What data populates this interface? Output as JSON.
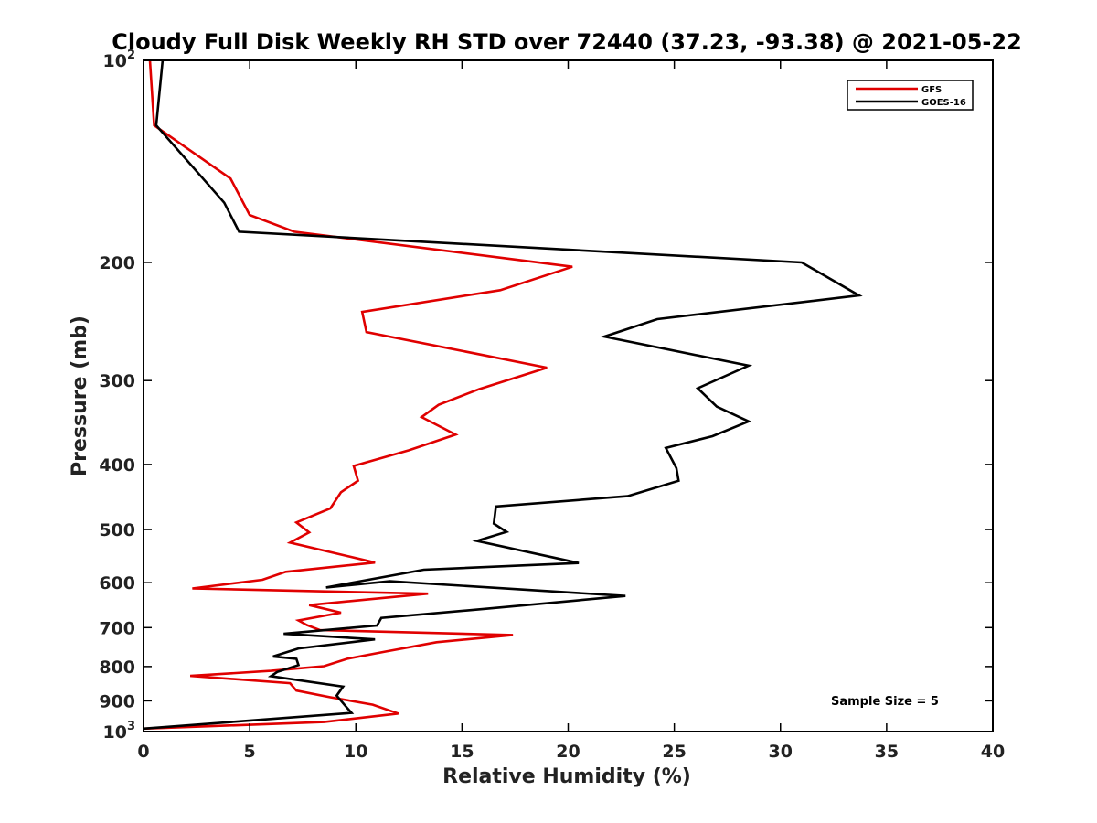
{
  "chart_data": {
    "type": "line",
    "title": "Cloudy Full Disk Weekly RH STD over 72440 (37.23, -93.38) @ 2021-05-22",
    "xlabel": "Relative Humidity (%)",
    "ylabel": "Pressure (mb)",
    "xlim": [
      0,
      40
    ],
    "ylim": [
      100,
      1000
    ],
    "y_scale": "log",
    "y_reversed": true,
    "x_ticks": [
      "0",
      "5",
      "10",
      "15",
      "20",
      "25",
      "30",
      "35",
      "40"
    ],
    "y_ticks": [
      {
        "value": 100,
        "base": "10",
        "exp": "2"
      },
      {
        "value": 200,
        "label": "200"
      },
      {
        "value": 300,
        "label": "300"
      },
      {
        "value": 400,
        "label": "400"
      },
      {
        "value": 500,
        "label": "500"
      },
      {
        "value": 600,
        "label": "600"
      },
      {
        "value": 700,
        "label": "700"
      },
      {
        "value": 800,
        "label": "800"
      },
      {
        "value": 900,
        "label": "900"
      },
      {
        "value": 1000,
        "base": "10",
        "exp": "3"
      }
    ],
    "legend_position": "top-right",
    "annotation": "Sample Size = 5",
    "series": [
      {
        "name": "GFS",
        "color": "#e00000",
        "points": [
          [
            0.3,
            100
          ],
          [
            0.5,
            125
          ],
          [
            4.1,
            150
          ],
          [
            5.0,
            170
          ],
          [
            7.1,
            180
          ],
          [
            20.2,
            203
          ],
          [
            16.8,
            220
          ],
          [
            10.3,
            237
          ],
          [
            10.5,
            254
          ],
          [
            19.0,
            287
          ],
          [
            15.8,
            309
          ],
          [
            13.9,
            326
          ],
          [
            13.1,
            340
          ],
          [
            14.7,
            361
          ],
          [
            12.5,
            381
          ],
          [
            9.9,
            402
          ],
          [
            10.1,
            423
          ],
          [
            9.3,
            440
          ],
          [
            8.8,
            465
          ],
          [
            7.2,
            488
          ],
          [
            7.8,
            505
          ],
          [
            6.9,
            523
          ],
          [
            10.9,
            560
          ],
          [
            6.7,
            578
          ],
          [
            5.6,
            594
          ],
          [
            2.3,
            612
          ],
          [
            13.4,
            623
          ],
          [
            7.8,
            648
          ],
          [
            9.3,
            665
          ],
          [
            7.3,
            683
          ],
          [
            7.7,
            694
          ],
          [
            8.3,
            706
          ],
          [
            17.4,
            718
          ],
          [
            13.8,
            736
          ],
          [
            11.4,
            760
          ],
          [
            9.6,
            779
          ],
          [
            8.5,
            799
          ],
          [
            6.0,
            812
          ],
          [
            2.2,
            826
          ],
          [
            6.9,
            847
          ],
          [
            7.2,
            869
          ],
          [
            8.8,
            889
          ],
          [
            10.8,
            912
          ],
          [
            12.0,
            940
          ],
          [
            8.5,
            968
          ],
          [
            0.0,
            990
          ]
        ]
      },
      {
        "name": "GOES-16",
        "color": "#000000",
        "points": [
          [
            0.9,
            100
          ],
          [
            0.6,
            125
          ],
          [
            3.8,
            163
          ],
          [
            4.5,
            180
          ],
          [
            31.0,
            200
          ],
          [
            33.7,
            224
          ],
          [
            24.2,
            243
          ],
          [
            21.7,
            258
          ],
          [
            28.5,
            285
          ],
          [
            26.1,
            308
          ],
          [
            27.0,
            328
          ],
          [
            28.5,
            345
          ],
          [
            26.8,
            363
          ],
          [
            24.6,
            378
          ],
          [
            25.1,
            405
          ],
          [
            25.2,
            423
          ],
          [
            22.8,
            446
          ],
          [
            16.6,
            462
          ],
          [
            16.5,
            490
          ],
          [
            17.1,
            504
          ],
          [
            15.7,
            520
          ],
          [
            20.5,
            561
          ],
          [
            13.2,
            574
          ],
          [
            8.6,
            610
          ],
          [
            11.6,
            597
          ],
          [
            22.7,
            628
          ],
          [
            16.2,
            656
          ],
          [
            11.2,
            677
          ],
          [
            11.0,
            695
          ],
          [
            6.6,
            715
          ],
          [
            10.9,
            729
          ],
          [
            7.3,
            752
          ],
          [
            6.1,
            773
          ],
          [
            7.2,
            779
          ],
          [
            7.3,
            796
          ],
          [
            6.3,
            815
          ],
          [
            6.0,
            827
          ],
          [
            9.4,
            857
          ],
          [
            9.1,
            884
          ],
          [
            9.5,
            915
          ],
          [
            9.8,
            938
          ],
          [
            0.0,
            990
          ]
        ]
      }
    ]
  }
}
